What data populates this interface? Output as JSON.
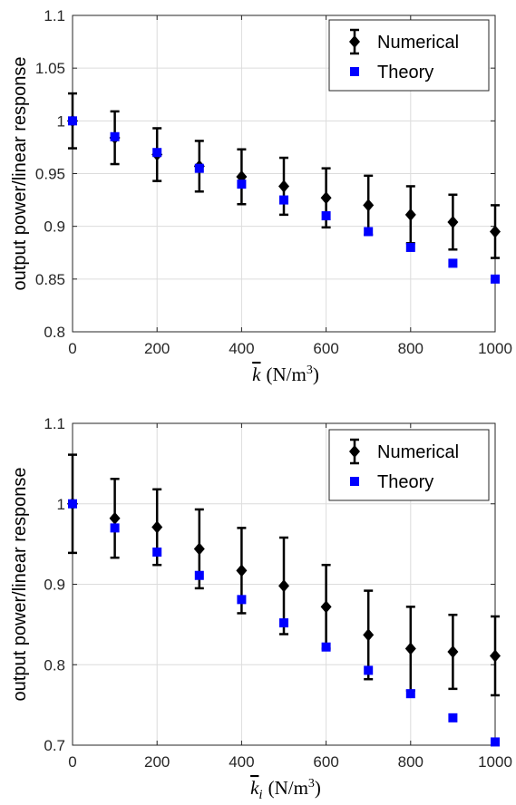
{
  "chart_data": [
    {
      "type": "scatter",
      "title": "",
      "xlabel_var": "k",
      "xlabel_sub": "",
      "xlabel_units": "(N/m",
      "xlabel_sup": "3",
      "xlabel_close": ")",
      "ylabel": "output power/linear response",
      "xlim": [
        0,
        1000
      ],
      "ylim": [
        0.8,
        1.1
      ],
      "xticks": [
        0,
        200,
        400,
        600,
        800,
        1000
      ],
      "yticks": [
        0.8,
        0.85,
        0.9,
        0.95,
        1.0,
        1.05,
        1.1
      ],
      "ytick_labels": [
        "0.8",
        "0.85",
        "0.9",
        "0.95",
        "1",
        "1.05",
        "1.1"
      ],
      "grid": true,
      "legend_position": "top-right",
      "x": [
        0,
        100,
        200,
        300,
        400,
        500,
        600,
        700,
        800,
        900,
        1000
      ],
      "series": [
        {
          "name": "Numerical",
          "marker": "diamond",
          "color": "#000000",
          "values": [
            1.0,
            0.984,
            0.968,
            0.957,
            0.947,
            0.938,
            0.927,
            0.92,
            0.911,
            0.904,
            0.895
          ],
          "error": [
            0.026,
            0.025,
            0.025,
            0.024,
            0.026,
            0.027,
            0.028,
            0.028,
            0.027,
            0.026,
            0.025
          ]
        },
        {
          "name": "Theory",
          "marker": "square",
          "color": "#0000ff",
          "values": [
            1.0,
            0.985,
            0.97,
            0.955,
            0.94,
            0.925,
            0.91,
            0.895,
            0.88,
            0.865,
            0.85
          ]
        }
      ]
    },
    {
      "type": "scatter",
      "title": "",
      "xlabel_var": "k",
      "xlabel_sub": "i",
      "xlabel_units": "(N/m",
      "xlabel_sup": "3",
      "xlabel_close": ")",
      "ylabel": "output power/linear response",
      "xlim": [
        0,
        1000
      ],
      "ylim": [
        0.7,
        1.1
      ],
      "xticks": [
        0,
        200,
        400,
        600,
        800,
        1000
      ],
      "yticks": [
        0.7,
        0.8,
        0.9,
        1.0,
        1.1
      ],
      "ytick_labels": [
        "0.7",
        "0.8",
        "0.9",
        "1",
        "1.1"
      ],
      "grid": true,
      "legend_position": "top-right",
      "x": [
        0,
        100,
        200,
        300,
        400,
        500,
        600,
        700,
        800,
        900,
        1000
      ],
      "series": [
        {
          "name": "Numerical",
          "marker": "diamond",
          "color": "#000000",
          "values": [
            1.0,
            0.982,
            0.971,
            0.944,
            0.917,
            0.898,
            0.872,
            0.837,
            0.82,
            0.816,
            0.811
          ],
          "error": [
            0.061,
            0.049,
            0.047,
            0.049,
            0.053,
            0.06,
            0.052,
            0.055,
            0.052,
            0.046,
            0.049
          ]
        },
        {
          "name": "Theory",
          "marker": "square",
          "color": "#0000ff",
          "values": [
            1.0,
            0.97,
            0.94,
            0.911,
            0.881,
            0.852,
            0.822,
            0.793,
            0.764,
            0.734,
            0.704
          ]
        }
      ]
    }
  ]
}
